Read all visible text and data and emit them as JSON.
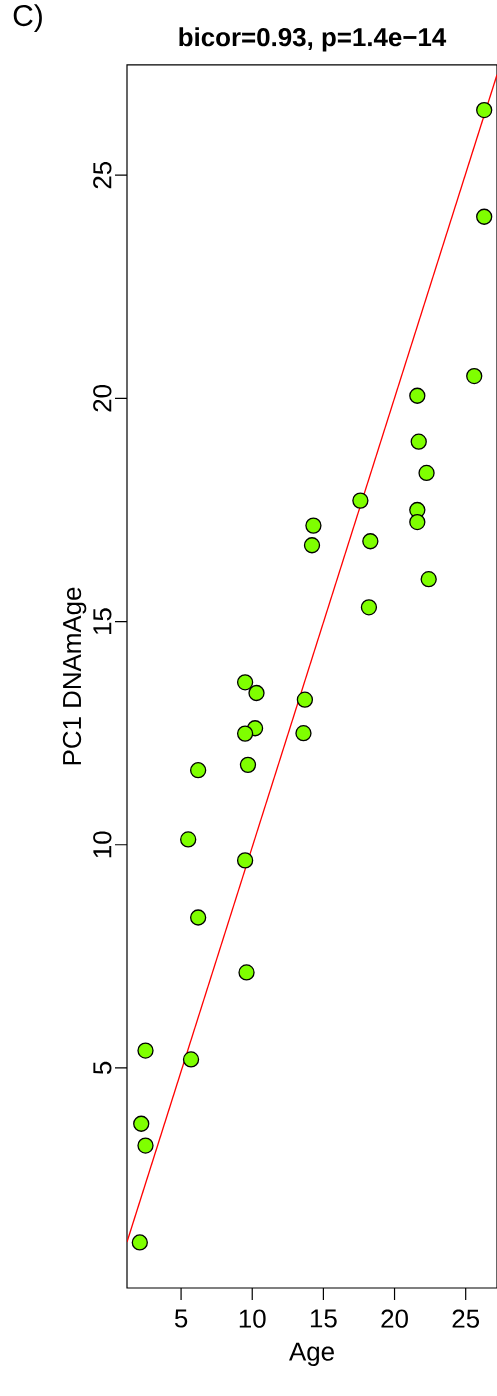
{
  "chart_data": {
    "type": "scatter",
    "title": "**bicor=0.93, p=1.4e−14**",
    "xlabel": "Age",
    "ylabel": "PC1 DNAmAge",
    "annotations": [
      "C)"
    ],
    "xlim": [
      1.2,
      27.2
    ],
    "ylim": [
      0.07,
      27.47
    ],
    "xticks": [
      5,
      10,
      15,
      20,
      25
    ],
    "yticks": [
      5,
      10,
      15,
      20,
      25
    ],
    "grid": false,
    "series": [
      {
        "marker": "circle",
        "color": "#7fff00",
        "x": [
          26.3,
          26.3,
          25.6,
          21.6,
          21.7,
          22.25,
          17.6,
          21.6,
          21.6,
          14.3,
          14.2,
          18.3,
          22.4,
          18.2,
          9.5,
          10.3,
          13.7,
          10.2,
          9.5,
          13.6,
          9.7,
          6.2,
          5.5,
          9.5,
          6.2,
          9.6,
          2.5,
          5.7,
          2.2,
          2.5,
          2.1
        ],
        "values": [
          26.46,
          24.07,
          20.5,
          20.06,
          19.03,
          18.33,
          17.71,
          17.5,
          17.23,
          17.15,
          16.71,
          16.8,
          15.95,
          15.32,
          13.64,
          13.4,
          13.25,
          12.61,
          12.49,
          12.5,
          11.79,
          11.67,
          10.12,
          9.65,
          8.37,
          7.14,
          5.39,
          5.19,
          3.75,
          3.26,
          1.09
        ]
      },
      {
        "type": "line",
        "color": "#ff0000",
        "x": [
          1.2,
          27.2
        ],
        "values": [
          1.1,
          27.25
        ]
      }
    ]
  }
}
